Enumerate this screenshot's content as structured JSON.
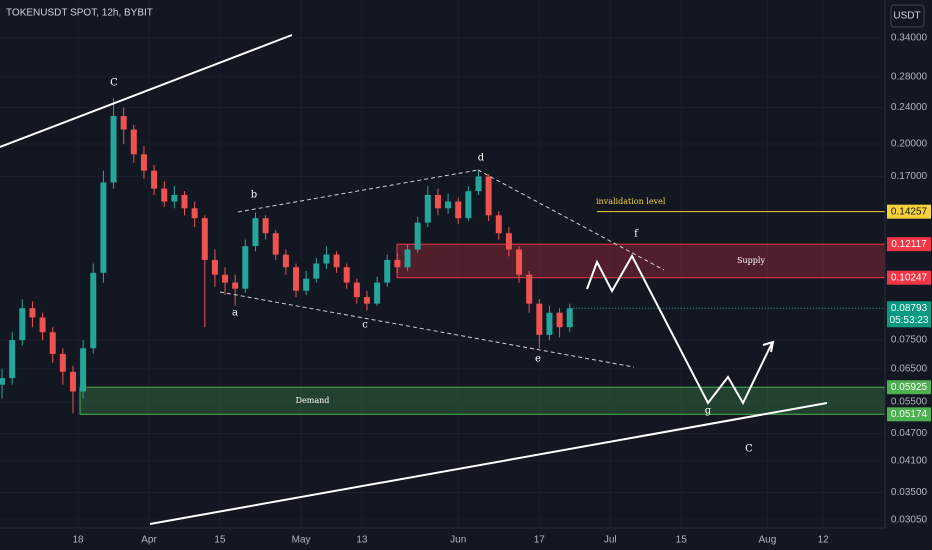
{
  "chart_data": {
    "type": "candlestick",
    "title": "TOKENUSDT SPOT, 12h, BYBIT",
    "y_axis_label": "USDT",
    "log_scale": true,
    "grid": true,
    "ylim": [
      0.0293,
      0.411
    ],
    "yticks": [
      {
        "value": 0.34,
        "label": "0.34000"
      },
      {
        "value": 0.28,
        "label": "0.28000"
      },
      {
        "value": 0.24,
        "label": "0.24000"
      },
      {
        "value": 0.2,
        "label": "0.20000"
      },
      {
        "value": 0.17,
        "label": "0.17000"
      },
      {
        "value": 0.075,
        "label": "0.07500"
      },
      {
        "value": 0.065,
        "label": "0.06500"
      },
      {
        "value": 0.055,
        "label": "0.05500"
      },
      {
        "value": 0.047,
        "label": "0.04700"
      },
      {
        "value": 0.041,
        "label": "0.04100"
      },
      {
        "value": 0.035,
        "label": "0.03500"
      },
      {
        "value": 0.0305,
        "label": "0.03050"
      }
    ],
    "xlim": [
      -15.4,
      159.2
    ],
    "xticks": [
      {
        "value": 0,
        "label": "18"
      },
      {
        "value": 14,
        "label": "Apr"
      },
      {
        "value": 28,
        "label": "15"
      },
      {
        "value": 44,
        "label": "May"
      },
      {
        "value": 56,
        "label": "13"
      },
      {
        "value": 75,
        "label": "Jun"
      },
      {
        "value": 91,
        "label": "17"
      },
      {
        "value": 105,
        "label": "Jul"
      },
      {
        "value": 119,
        "label": "15"
      },
      {
        "value": 136,
        "label": "Aug"
      },
      {
        "value": 147,
        "label": "12"
      }
    ],
    "x": [
      -15,
      -13,
      -11,
      -9,
      -7,
      -5,
      -3,
      -1,
      1,
      3,
      5,
      7,
      9,
      11,
      13,
      15,
      17,
      19,
      21,
      23,
      25,
      27,
      29,
      31,
      33,
      35,
      37,
      39,
      41,
      43,
      45,
      47,
      49,
      51,
      53,
      55,
      57,
      59,
      61,
      63,
      65,
      67,
      69,
      71,
      73,
      75,
      77,
      79,
      81,
      83,
      85,
      87,
      89,
      91,
      93,
      95,
      97
    ],
    "open": [
      0.06,
      0.062,
      0.075,
      0.088,
      0.084,
      0.078,
      0.07,
      0.064,
      0.058,
      0.072,
      0.105,
      0.165,
      0.23,
      0.215,
      0.19,
      0.175,
      0.16,
      0.15,
      0.155,
      0.145,
      0.138,
      0.112,
      0.104,
      0.1,
      0.097,
      0.12,
      0.138,
      0.128,
      0.115,
      0.108,
      0.096,
      0.102,
      0.11,
      0.115,
      0.108,
      0.1,
      0.093,
      0.09,
      0.1,
      0.112,
      0.108,
      0.118,
      0.135,
      0.155,
      0.145,
      0.15,
      0.138,
      0.158,
      0.17,
      0.14,
      0.128,
      0.118,
      0.104,
      0.09,
      0.077,
      0.086,
      0.08
    ],
    "high": [
      0.065,
      0.078,
      0.092,
      0.091,
      0.086,
      0.08,
      0.072,
      0.066,
      0.075,
      0.11,
      0.175,
      0.251,
      0.24,
      0.22,
      0.198,
      0.18,
      0.166,
      0.162,
      0.158,
      0.15,
      0.14,
      0.118,
      0.108,
      0.104,
      0.124,
      0.142,
      0.14,
      0.13,
      0.118,
      0.11,
      0.106,
      0.113,
      0.12,
      0.117,
      0.11,
      0.102,
      0.096,
      0.103,
      0.115,
      0.116,
      0.121,
      0.139,
      0.162,
      0.16,
      0.156,
      0.153,
      0.162,
      0.176,
      0.172,
      0.143,
      0.132,
      0.12,
      0.106,
      0.092,
      0.089,
      0.088,
      0.09
    ],
    "low": [
      0.056,
      0.06,
      0.073,
      0.08,
      0.075,
      0.067,
      0.06,
      0.052,
      0.056,
      0.07,
      0.1,
      0.16,
      0.2,
      0.182,
      0.168,
      0.155,
      0.146,
      0.145,
      0.14,
      0.132,
      0.08,
      0.098,
      0.094,
      0.089,
      0.095,
      0.117,
      0.124,
      0.112,
      0.104,
      0.093,
      0.094,
      0.1,
      0.107,
      0.105,
      0.097,
      0.09,
      0.087,
      0.089,
      0.098,
      0.105,
      0.106,
      0.116,
      0.132,
      0.14,
      0.141,
      0.134,
      0.136,
      0.155,
      0.136,
      0.124,
      0.114,
      0.1,
      0.086,
      0.072,
      0.075,
      0.076,
      0.078
    ],
    "close": [
      0.062,
      0.075,
      0.088,
      0.084,
      0.078,
      0.07,
      0.064,
      0.058,
      0.072,
      0.105,
      0.165,
      0.23,
      0.215,
      0.19,
      0.175,
      0.16,
      0.15,
      0.155,
      0.145,
      0.138,
      0.112,
      0.104,
      0.1,
      0.097,
      0.12,
      0.138,
      0.128,
      0.115,
      0.108,
      0.096,
      0.102,
      0.11,
      0.115,
      0.108,
      0.1,
      0.093,
      0.09,
      0.1,
      0.112,
      0.108,
      0.118,
      0.135,
      0.155,
      0.145,
      0.15,
      0.138,
      0.158,
      0.17,
      0.14,
      0.128,
      0.118,
      0.104,
      0.09,
      0.077,
      0.086,
      0.08,
      0.08793
    ],
    "up_color": "#26a69a",
    "down_color": "#ef5350",
    "countdown": "05:53:23",
    "price_levels": [
      0.14257,
      0.12117,
      0.10247,
      0.05925,
      0.05174
    ],
    "price_level_colors": [
      "#f7d23a",
      "#f23645",
      "#f23645",
      "#4caf50",
      "#4caf50"
    ],
    "zone_labels": [
      "Supply",
      "Demand"
    ],
    "annotations": [
      "C",
      "b",
      "a",
      "c",
      "d",
      "e",
      "f",
      "g",
      "C",
      "invalidation level"
    ]
  }
}
